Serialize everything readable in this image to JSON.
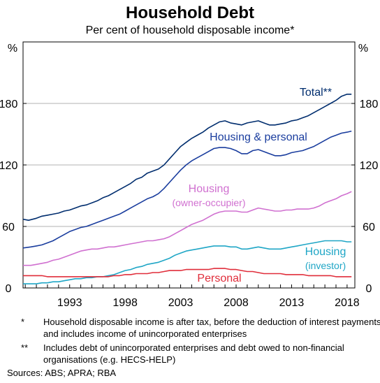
{
  "title": "Household Debt",
  "subtitle": "Per cent of household disposable income*",
  "chart_data": {
    "type": "line",
    "unit_left": "%",
    "unit_right": "%",
    "x_range": [
      1988.8,
      2018.7
    ],
    "ylim": [
      0,
      180
    ],
    "y_ticks": [
      0,
      60,
      120,
      180
    ],
    "x_ticks": [
      1993,
      1998,
      2003,
      2008,
      2013,
      2018
    ],
    "grid": true,
    "series": [
      {
        "name": "Total**",
        "label_lines": [
          "Total**"
        ],
        "color": "#002d6e",
        "points": [
          [
            1988.8,
            67
          ],
          [
            1989.3,
            66
          ],
          [
            1990,
            68
          ],
          [
            1990.5,
            70
          ],
          [
            1991,
            71
          ],
          [
            1991.5,
            72
          ],
          [
            1992,
            73
          ],
          [
            1992.5,
            75
          ],
          [
            1993,
            76
          ],
          [
            1993.5,
            78
          ],
          [
            1994,
            80
          ],
          [
            1994.5,
            81
          ],
          [
            1995,
            83
          ],
          [
            1995.5,
            85
          ],
          [
            1996,
            88
          ],
          [
            1996.5,
            90
          ],
          [
            1997,
            93
          ],
          [
            1997.5,
            96
          ],
          [
            1998,
            99
          ],
          [
            1998.5,
            102
          ],
          [
            1999,
            106
          ],
          [
            1999.5,
            108
          ],
          [
            2000,
            112
          ],
          [
            2000.5,
            114
          ],
          [
            2001,
            116
          ],
          [
            2001.5,
            120
          ],
          [
            2002,
            126
          ],
          [
            2002.5,
            132
          ],
          [
            2003,
            138
          ],
          [
            2003.5,
            142
          ],
          [
            2004,
            146
          ],
          [
            2004.5,
            149
          ],
          [
            2005,
            152
          ],
          [
            2005.5,
            156
          ],
          [
            2006,
            159
          ],
          [
            2006.5,
            162
          ],
          [
            2007,
            163
          ],
          [
            2007.5,
            161
          ],
          [
            2008,
            160
          ],
          [
            2008.5,
            159
          ],
          [
            2009,
            161
          ],
          [
            2009.5,
            162
          ],
          [
            2010,
            163
          ],
          [
            2010.5,
            161
          ],
          [
            2011,
            159
          ],
          [
            2011.5,
            159
          ],
          [
            2012,
            160
          ],
          [
            2012.5,
            161
          ],
          [
            2013,
            163
          ],
          [
            2013.5,
            164
          ],
          [
            2014,
            166
          ],
          [
            2014.5,
            168
          ],
          [
            2015,
            171
          ],
          [
            2015.5,
            174
          ],
          [
            2016,
            177
          ],
          [
            2016.5,
            180
          ],
          [
            2017,
            183
          ],
          [
            2017.5,
            187
          ],
          [
            2018,
            189
          ],
          [
            2018.4,
            189
          ]
        ]
      },
      {
        "name": "Housing & personal",
        "label_lines": [
          "Housing & personal"
        ],
        "color": "#1a3d9e",
        "points": [
          [
            1988.8,
            39
          ],
          [
            1989.5,
            40
          ],
          [
            1990,
            41
          ],
          [
            1990.5,
            42
          ],
          [
            1991,
            44
          ],
          [
            1991.5,
            46
          ],
          [
            1992,
            49
          ],
          [
            1992.5,
            52
          ],
          [
            1993,
            55
          ],
          [
            1993.5,
            57
          ],
          [
            1994,
            59
          ],
          [
            1994.5,
            60
          ],
          [
            1995,
            62
          ],
          [
            1995.5,
            64
          ],
          [
            1996,
            66
          ],
          [
            1996.5,
            68
          ],
          [
            1997,
            70
          ],
          [
            1997.5,
            72
          ],
          [
            1998,
            75
          ],
          [
            1998.5,
            78
          ],
          [
            1999,
            81
          ],
          [
            1999.5,
            84
          ],
          [
            2000,
            87
          ],
          [
            2000.5,
            89
          ],
          [
            2001,
            92
          ],
          [
            2001.5,
            97
          ],
          [
            2002,
            103
          ],
          [
            2002.5,
            109
          ],
          [
            2003,
            115
          ],
          [
            2003.5,
            120
          ],
          [
            2004,
            124
          ],
          [
            2004.5,
            127
          ],
          [
            2005,
            130
          ],
          [
            2005.5,
            133
          ],
          [
            2006,
            136
          ],
          [
            2006.5,
            137
          ],
          [
            2007,
            137
          ],
          [
            2007.5,
            136
          ],
          [
            2008,
            134
          ],
          [
            2008.5,
            131
          ],
          [
            2009,
            131
          ],
          [
            2009.5,
            134
          ],
          [
            2010,
            135
          ],
          [
            2010.5,
            133
          ],
          [
            2011,
            131
          ],
          [
            2011.5,
            129
          ],
          [
            2012,
            129
          ],
          [
            2012.5,
            130
          ],
          [
            2013,
            132
          ],
          [
            2013.5,
            133
          ],
          [
            2014,
            134
          ],
          [
            2014.5,
            136
          ],
          [
            2015,
            138
          ],
          [
            2015.5,
            141
          ],
          [
            2016,
            144
          ],
          [
            2016.5,
            147
          ],
          [
            2017,
            149
          ],
          [
            2017.5,
            151
          ],
          [
            2018,
            152
          ],
          [
            2018.4,
            153
          ]
        ]
      },
      {
        "name": "Housing (owner-occupier)",
        "label_lines": [
          "Housing",
          "(owner-occupier)"
        ],
        "color": "#d070d0",
        "points": [
          [
            1988.8,
            22
          ],
          [
            1989.5,
            22
          ],
          [
            1990,
            23
          ],
          [
            1990.5,
            24
          ],
          [
            1991,
            25
          ],
          [
            1991.5,
            27
          ],
          [
            1992,
            28
          ],
          [
            1992.5,
            30
          ],
          [
            1993,
            32
          ],
          [
            1993.5,
            34
          ],
          [
            1994,
            36
          ],
          [
            1994.5,
            37
          ],
          [
            1995,
            38
          ],
          [
            1995.5,
            38
          ],
          [
            1996,
            39
          ],
          [
            1996.5,
            40
          ],
          [
            1997,
            40
          ],
          [
            1997.5,
            41
          ],
          [
            1998,
            42
          ],
          [
            1998.5,
            43
          ],
          [
            1999,
            44
          ],
          [
            1999.5,
            45
          ],
          [
            2000,
            46
          ],
          [
            2000.5,
            46
          ],
          [
            2001,
            47
          ],
          [
            2001.5,
            48
          ],
          [
            2002,
            50
          ],
          [
            2002.5,
            53
          ],
          [
            2003,
            56
          ],
          [
            2003.5,
            59
          ],
          [
            2004,
            62
          ],
          [
            2004.5,
            64
          ],
          [
            2005,
            66
          ],
          [
            2005.5,
            69
          ],
          [
            2006,
            72
          ],
          [
            2006.5,
            74
          ],
          [
            2007,
            75
          ],
          [
            2007.5,
            75
          ],
          [
            2008,
            75
          ],
          [
            2008.5,
            74
          ],
          [
            2009,
            74
          ],
          [
            2009.5,
            76
          ],
          [
            2010,
            78
          ],
          [
            2010.5,
            77
          ],
          [
            2011,
            76
          ],
          [
            2011.5,
            75
          ],
          [
            2012,
            75
          ],
          [
            2012.5,
            76
          ],
          [
            2013,
            76
          ],
          [
            2013.5,
            77
          ],
          [
            2014,
            77
          ],
          [
            2014.5,
            77
          ],
          [
            2015,
            78
          ],
          [
            2015.5,
            80
          ],
          [
            2016,
            83
          ],
          [
            2016.5,
            85
          ],
          [
            2017,
            87
          ],
          [
            2017.5,
            90
          ],
          [
            2018,
            92
          ],
          [
            2018.4,
            94
          ]
        ]
      },
      {
        "name": "Housing (investor)",
        "label_lines": [
          "Housing",
          "(investor)"
        ],
        "color": "#1fa6c6",
        "points": [
          [
            1988.8,
            4
          ],
          [
            1989.5,
            4
          ],
          [
            1990,
            4
          ],
          [
            1990.5,
            5
          ],
          [
            1991,
            5
          ],
          [
            1991.5,
            6
          ],
          [
            1992,
            6
          ],
          [
            1992.5,
            7
          ],
          [
            1993,
            8
          ],
          [
            1993.5,
            9
          ],
          [
            1994,
            9
          ],
          [
            1994.5,
            10
          ],
          [
            1995,
            10
          ],
          [
            1995.5,
            11
          ],
          [
            1996,
            11
          ],
          [
            1996.5,
            12
          ],
          [
            1997,
            13
          ],
          [
            1997.5,
            15
          ],
          [
            1998,
            17
          ],
          [
            1998.5,
            18
          ],
          [
            1999,
            20
          ],
          [
            1999.5,
            21
          ],
          [
            2000,
            23
          ],
          [
            2000.5,
            24
          ],
          [
            2001,
            25
          ],
          [
            2001.5,
            27
          ],
          [
            2002,
            29
          ],
          [
            2002.5,
            32
          ],
          [
            2003,
            34
          ],
          [
            2003.5,
            36
          ],
          [
            2004,
            37
          ],
          [
            2004.5,
            38
          ],
          [
            2005,
            39
          ],
          [
            2005.5,
            40
          ],
          [
            2006,
            41
          ],
          [
            2006.5,
            41
          ],
          [
            2007,
            41
          ],
          [
            2007.5,
            40
          ],
          [
            2008,
            40
          ],
          [
            2008.5,
            38
          ],
          [
            2009,
            38
          ],
          [
            2009.5,
            39
          ],
          [
            2010,
            40
          ],
          [
            2010.5,
            39
          ],
          [
            2011,
            38
          ],
          [
            2011.5,
            38
          ],
          [
            2012,
            38
          ],
          [
            2012.5,
            39
          ],
          [
            2013,
            40
          ],
          [
            2013.5,
            41
          ],
          [
            2014,
            42
          ],
          [
            2014.5,
            43
          ],
          [
            2015,
            44
          ],
          [
            2015.5,
            45
          ],
          [
            2016,
            46
          ],
          [
            2016.5,
            46
          ],
          [
            2017,
            46
          ],
          [
            2017.5,
            46
          ],
          [
            2018,
            45
          ],
          [
            2018.4,
            45
          ]
        ]
      },
      {
        "name": "Personal",
        "label_lines": [
          "Personal"
        ],
        "color": "#e02d3a",
        "points": [
          [
            1988.8,
            12
          ],
          [
            1989.5,
            12
          ],
          [
            1990,
            12
          ],
          [
            1990.5,
            12
          ],
          [
            1991,
            11
          ],
          [
            1991.5,
            11
          ],
          [
            1992,
            11
          ],
          [
            1992.5,
            11
          ],
          [
            1993,
            11
          ],
          [
            1993.5,
            11
          ],
          [
            1994,
            11
          ],
          [
            1994.5,
            11
          ],
          [
            1995,
            11
          ],
          [
            1995.5,
            11
          ],
          [
            1996,
            11
          ],
          [
            1996.5,
            11
          ],
          [
            1997,
            12
          ],
          [
            1997.5,
            12
          ],
          [
            1998,
            13
          ],
          [
            1998.5,
            13
          ],
          [
            1999,
            14
          ],
          [
            1999.5,
            14
          ],
          [
            2000,
            14
          ],
          [
            2000.5,
            15
          ],
          [
            2001,
            15
          ],
          [
            2001.5,
            16
          ],
          [
            2002,
            17
          ],
          [
            2002.5,
            17
          ],
          [
            2003,
            17
          ],
          [
            2003.5,
            18
          ],
          [
            2004,
            18
          ],
          [
            2004.5,
            18
          ],
          [
            2005,
            18
          ],
          [
            2005.5,
            18
          ],
          [
            2006,
            19
          ],
          [
            2006.5,
            19
          ],
          [
            2007,
            19
          ],
          [
            2007.5,
            18
          ],
          [
            2008,
            18
          ],
          [
            2008.5,
            17
          ],
          [
            2009,
            16
          ],
          [
            2009.5,
            16
          ],
          [
            2010,
            15
          ],
          [
            2010.5,
            14
          ],
          [
            2011,
            14
          ],
          [
            2011.5,
            14
          ],
          [
            2012,
            14
          ],
          [
            2012.5,
            13
          ],
          [
            2013,
            13
          ],
          [
            2013.5,
            13
          ],
          [
            2014,
            13
          ],
          [
            2014.5,
            12
          ],
          [
            2015,
            12
          ],
          [
            2015.5,
            12
          ],
          [
            2016,
            12
          ],
          [
            2016.5,
            12
          ],
          [
            2017,
            11
          ],
          [
            2017.5,
            11
          ],
          [
            2018,
            11
          ],
          [
            2018.4,
            11
          ]
        ]
      }
    ]
  },
  "notes": [
    {
      "mark": "*",
      "text": "Household disposable income is after tax, before the deduction of interest payments, and includes income of unincorporated enterprises"
    },
    {
      "mark": "**",
      "text": "Includes debt of unincorporated enterprises and debt owed to non-financial organisations (e.g. HECS-HELP)"
    }
  ],
  "sources": "Sources:   ABS; APRA; RBA"
}
